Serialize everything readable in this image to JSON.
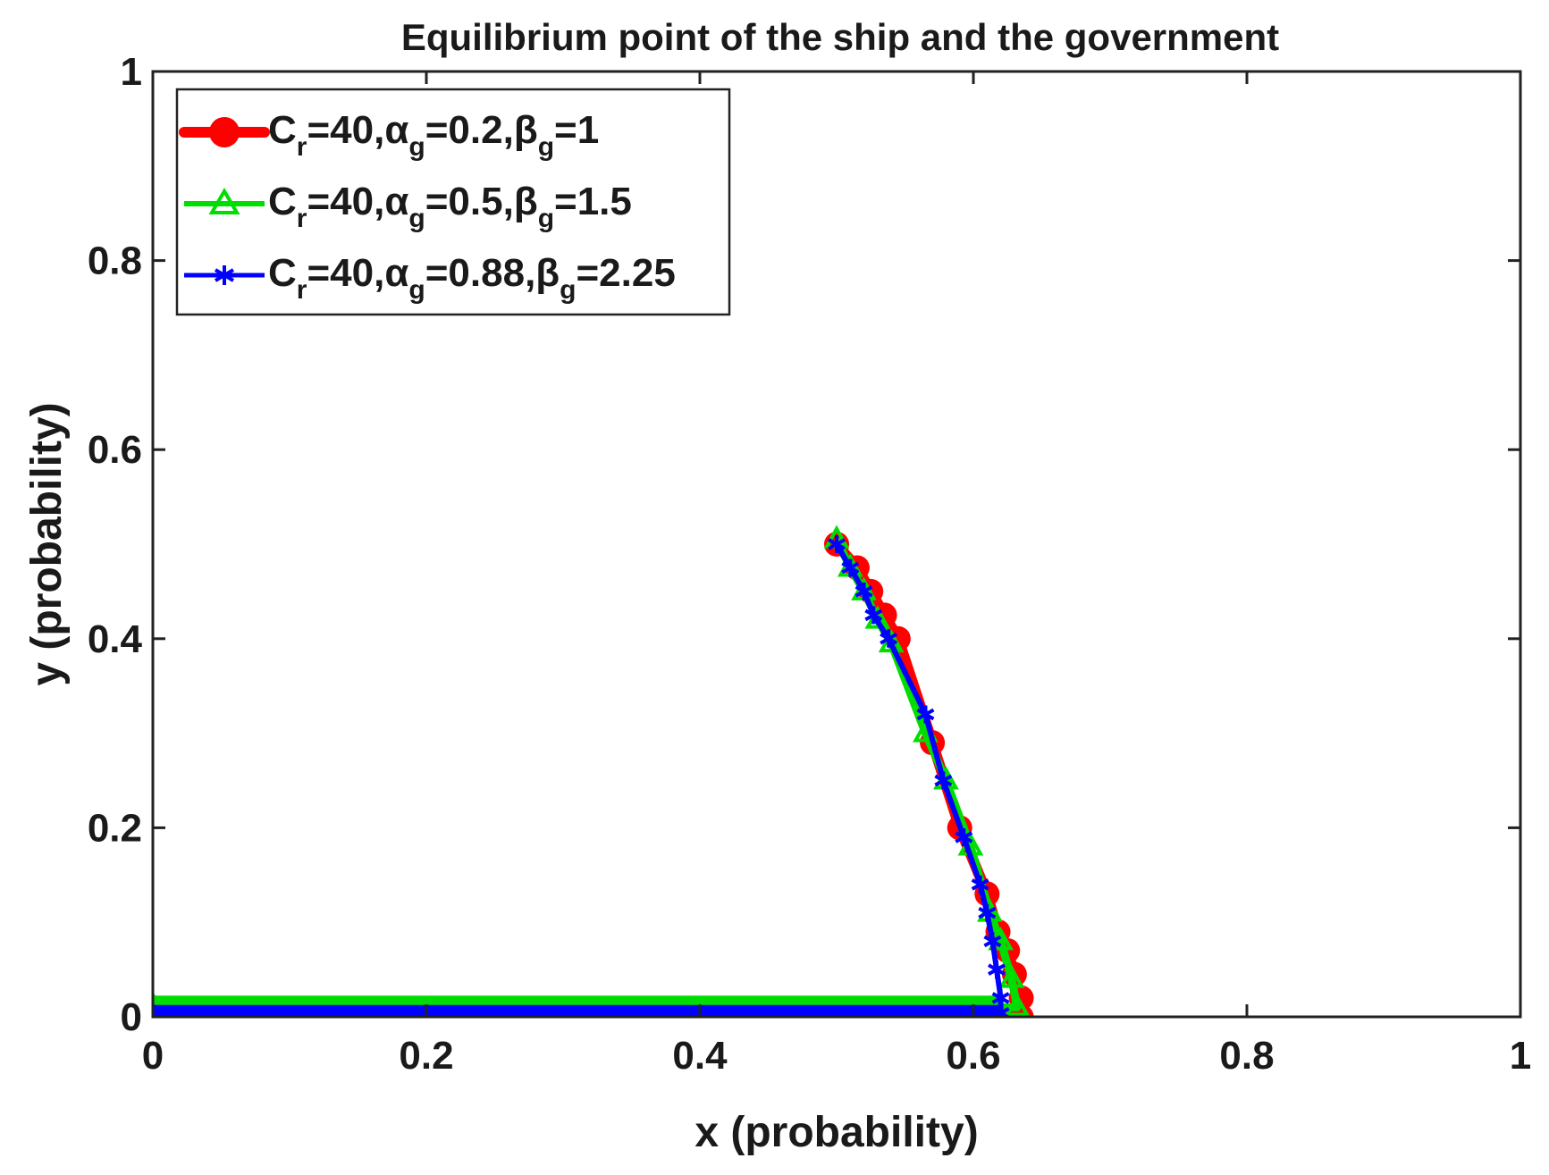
{
  "chart_data": {
    "type": "line",
    "title": "Equilibrium point of the ship and the government",
    "xlabel": "x (probability)",
    "ylabel": "y (probability)",
    "xlim": [
      0,
      1
    ],
    "ylim": [
      0,
      1
    ],
    "xticks": [
      "0",
      "0.2",
      "0.4",
      "0.6",
      "0.8",
      "1"
    ],
    "yticks": [
      "0",
      "0.2",
      "0.4",
      "0.6",
      "0.8",
      "1"
    ],
    "grid": false,
    "legend_position": "top-left",
    "series": [
      {
        "name": "Cr=40,αg=0.2,βg=1",
        "legend": {
          "c_sub": "r",
          "eq1": "=40,",
          "alpha": "α",
          "alpha_sub": "g",
          "eq2": "=0.2,",
          "beta": "β",
          "beta_sub": "g",
          "eq3": "=1"
        },
        "color": "#ff0000",
        "marker": "circle",
        "points": [
          [
            0.5,
            0.5
          ],
          [
            0.515,
            0.475
          ],
          [
            0.525,
            0.45
          ],
          [
            0.535,
            0.425
          ],
          [
            0.545,
            0.4
          ],
          [
            0.57,
            0.29
          ],
          [
            0.59,
            0.2
          ],
          [
            0.61,
            0.13
          ],
          [
            0.618,
            0.09
          ],
          [
            0.625,
            0.07
          ],
          [
            0.63,
            0.045
          ],
          [
            0.635,
            0.02
          ],
          [
            0.635,
            0.0
          ],
          [
            0.0,
            0.0
          ]
        ],
        "floor_y": -0.005
      },
      {
        "name": "Cr=40,αg=0.5,βg=1.5",
        "legend": {
          "c_sub": "r",
          "eq1": "=40,",
          "alpha": "α",
          "alpha_sub": "g",
          "eq2": "=0.5,",
          "beta": "β",
          "beta_sub": "g",
          "eq3": "=1.5"
        },
        "color": "#00dd00",
        "marker": "triangle",
        "points": [
          [
            0.5,
            0.505
          ],
          [
            0.51,
            0.475
          ],
          [
            0.52,
            0.45
          ],
          [
            0.53,
            0.42
          ],
          [
            0.54,
            0.395
          ],
          [
            0.565,
            0.3
          ],
          [
            0.58,
            0.25
          ],
          [
            0.598,
            0.18
          ],
          [
            0.612,
            0.11
          ],
          [
            0.62,
            0.08
          ],
          [
            0.628,
            0.04
          ],
          [
            0.632,
            0.01
          ],
          [
            0.0,
            0.012
          ]
        ],
        "floor_y": 0.012
      },
      {
        "name": "Cr=40,αg=0.88,βg=2.25",
        "legend": {
          "c_sub": "r",
          "eq1": "=40,",
          "alpha": "α",
          "alpha_sub": "g",
          "eq2": "=0.88,",
          "beta": "β",
          "beta_sub": "g",
          "eq3": "=2.25"
        },
        "color": "#0000ff",
        "marker": "star",
        "points": [
          [
            0.5,
            0.5
          ],
          [
            0.51,
            0.475
          ],
          [
            0.52,
            0.45
          ],
          [
            0.527,
            0.425
          ],
          [
            0.538,
            0.4
          ],
          [
            0.565,
            0.32
          ],
          [
            0.578,
            0.25
          ],
          [
            0.593,
            0.19
          ],
          [
            0.605,
            0.14
          ],
          [
            0.61,
            0.11
          ],
          [
            0.614,
            0.08
          ],
          [
            0.617,
            0.05
          ],
          [
            0.62,
            0.02
          ],
          [
            0.62,
            0.004
          ],
          [
            0.0,
            0.004
          ]
        ],
        "floor_y": 0.004
      }
    ]
  }
}
